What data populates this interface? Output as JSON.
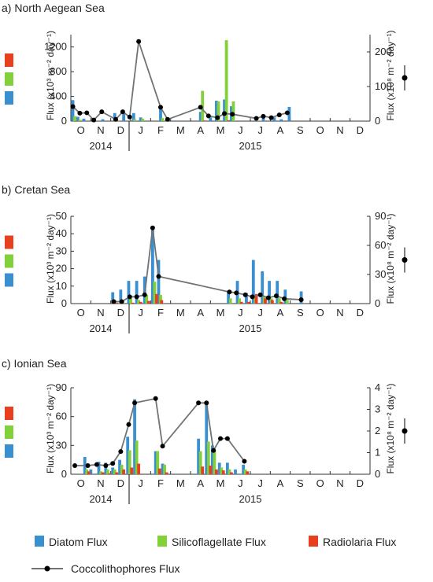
{
  "legend": {
    "diatom": "Diatom Flux",
    "silico": "Silicoflagellate Flux",
    "radio": "Radiolaria Flux",
    "cocco": "Coccolithophores Flux"
  },
  "colors": {
    "diatom": "#3a8fd0",
    "silico": "#82d03a",
    "radio": "#e8401f",
    "cocco": "#6f7478"
  },
  "months": [
    "O",
    "N",
    "D",
    "J",
    "F",
    "M",
    "A",
    "M",
    "J",
    "J",
    "A",
    "S",
    "O",
    "N",
    "D"
  ],
  "years": [
    "2014",
    "2015"
  ],
  "chart_data": [
    {
      "type": "bar",
      "title": "a) North Aegean Sea",
      "ylabel_left": "Flux (x10³ m⁻² day⁻¹)",
      "ylabel_right": "Flux (x10⁸ m⁻² day⁻¹)",
      "ylim_left": [
        0,
        1400
      ],
      "yticks_left": [
        0,
        400,
        800,
        1200
      ],
      "ylim_right": [
        0,
        250
      ],
      "yticks_right": [
        0,
        100,
        200
      ],
      "diatom": [
        [
          0.1,
          340
        ],
        [
          0.35,
          70
        ],
        [
          0.65,
          40
        ],
        [
          1.1,
          30
        ],
        [
          1.6,
          30
        ],
        [
          2.2,
          130
        ],
        [
          2.65,
          120
        ],
        [
          3.15,
          130
        ],
        [
          3.5,
          60
        ],
        [
          4.5,
          200
        ],
        [
          6.5,
          150
        ],
        [
          7.0,
          60
        ],
        [
          7.3,
          330
        ],
        [
          7.7,
          350
        ],
        [
          8.05,
          240
        ],
        [
          9.3,
          50
        ],
        [
          9.65,
          60
        ],
        [
          10.2,
          60
        ],
        [
          10.55,
          30
        ],
        [
          10.95,
          230
        ]
      ],
      "silico": [
        [
          0.2,
          80
        ],
        [
          0.45,
          20
        ],
        [
          1.2,
          10
        ],
        [
          2.3,
          20
        ],
        [
          3.2,
          30
        ],
        [
          3.6,
          40
        ],
        [
          4.6,
          50
        ],
        [
          6.6,
          490
        ],
        [
          7.4,
          320
        ],
        [
          7.8,
          1310
        ],
        [
          8.15,
          320
        ],
        [
          9.4,
          10
        ]
      ],
      "radio": [
        [
          0.3,
          5
        ],
        [
          2.4,
          5
        ],
        [
          6.7,
          10
        ],
        [
          7.9,
          15
        ],
        [
          9.5,
          5
        ]
      ],
      "cocco": [
        [
          0.1,
          42
        ],
        [
          0.45,
          23
        ],
        [
          0.8,
          24
        ],
        [
          1.15,
          3
        ],
        [
          1.55,
          27
        ],
        [
          2.25,
          5
        ],
        [
          2.6,
          27
        ],
        [
          2.95,
          12
        ],
        [
          3.4,
          230
        ],
        [
          4.5,
          40
        ],
        [
          4.85,
          5
        ],
        [
          6.5,
          40
        ],
        [
          6.9,
          15
        ],
        [
          7.35,
          10
        ],
        [
          7.7,
          22
        ],
        [
          8.1,
          20
        ],
        [
          9.3,
          8
        ],
        [
          9.65,
          14
        ],
        [
          10.05,
          10
        ],
        [
          10.45,
          18
        ],
        [
          10.85,
          24
        ]
      ]
    },
    {
      "type": "bar",
      "title": "b) Cretan Sea",
      "ylabel_left": "Flux (x10³ m⁻² day⁻¹)",
      "ylabel_right": "Flux (x10⁸ m⁻² day⁻¹)",
      "ylim_left": [
        0,
        50
      ],
      "yticks_left": [
        0,
        10,
        20,
        30,
        40,
        50
      ],
      "ylim_right": [
        0,
        90
      ],
      "yticks_right": [
        0,
        30,
        60,
        90
      ],
      "diatom": [
        [
          2.1,
          6.5
        ],
        [
          2.5,
          8
        ],
        [
          2.9,
          13
        ],
        [
          3.3,
          13
        ],
        [
          3.7,
          15.5
        ],
        [
          4.1,
          44
        ],
        [
          4.4,
          25
        ],
        [
          7.9,
          7
        ],
        [
          8.35,
          13
        ],
        [
          8.8,
          6
        ],
        [
          9.15,
          25
        ],
        [
          9.6,
          18.5
        ],
        [
          9.95,
          13
        ],
        [
          10.35,
          13
        ],
        [
          10.75,
          8
        ],
        [
          11.55,
          7
        ]
      ],
      "silico": [
        [
          2.2,
          2
        ],
        [
          2.6,
          1.5
        ],
        [
          3.0,
          3
        ],
        [
          3.4,
          2
        ],
        [
          3.8,
          5
        ],
        [
          4.2,
          12.5
        ],
        [
          4.5,
          5
        ],
        [
          8.0,
          3
        ],
        [
          8.45,
          3
        ],
        [
          9.25,
          4
        ],
        [
          9.7,
          4
        ],
        [
          10.05,
          3
        ],
        [
          10.45,
          3
        ],
        [
          10.85,
          2
        ]
      ],
      "radio": [
        [
          2.3,
          0.5
        ],
        [
          3.1,
          0.5
        ],
        [
          3.5,
          1
        ],
        [
          3.9,
          1.5
        ],
        [
          4.3,
          5.5
        ],
        [
          4.55,
          2
        ],
        [
          8.55,
          1
        ],
        [
          8.9,
          1
        ],
        [
          9.3,
          5.5
        ],
        [
          9.75,
          3
        ],
        [
          10.1,
          2
        ],
        [
          10.55,
          1
        ]
      ],
      "cocco": [
        [
          2.15,
          2
        ],
        [
          2.55,
          2
        ],
        [
          2.95,
          7
        ],
        [
          3.3,
          7
        ],
        [
          3.7,
          9
        ],
        [
          4.1,
          78
        ],
        [
          4.4,
          28
        ],
        [
          7.95,
          12
        ],
        [
          8.3,
          11
        ],
        [
          8.75,
          9
        ],
        [
          9.1,
          7
        ],
        [
          9.5,
          9
        ],
        [
          9.9,
          6
        ],
        [
          10.3,
          8
        ],
        [
          10.7,
          5
        ],
        [
          11.55,
          4
        ]
      ]
    },
    {
      "type": "bar",
      "title": "c) Ionian Sea",
      "ylabel_left": "Flux (x10³ m⁻² day⁻¹)",
      "ylabel_right": "Flux (x10⁸ m⁻² day⁻¹)",
      "ylim_left": [
        0,
        90
      ],
      "yticks_left": [
        0,
        30,
        60,
        90
      ],
      "ylim_right": [
        0,
        4
      ],
      "yticks_right": [
        0,
        1,
        2,
        3,
        4
      ],
      "diatom": [
        [
          0.7,
          18
        ],
        [
          1.0,
          5
        ],
        [
          1.4,
          13
        ],
        [
          1.75,
          12
        ],
        [
          2.1,
          7
        ],
        [
          2.45,
          15
        ],
        [
          2.85,
          39
        ],
        [
          3.2,
          78
        ],
        [
          4.25,
          24
        ],
        [
          4.6,
          11
        ],
        [
          6.4,
          37
        ],
        [
          6.8,
          75
        ],
        [
          7.1,
          30
        ],
        [
          7.45,
          12
        ],
        [
          7.85,
          12
        ],
        [
          8.25,
          5
        ],
        [
          8.65,
          10
        ]
      ],
      "silico": [
        [
          0.8,
          5
        ],
        [
          1.5,
          3
        ],
        [
          1.85,
          5
        ],
        [
          2.2,
          5
        ],
        [
          2.55,
          10
        ],
        [
          2.95,
          25
        ],
        [
          3.3,
          35
        ],
        [
          4.35,
          24
        ],
        [
          4.7,
          10
        ],
        [
          6.5,
          24
        ],
        [
          6.9,
          34
        ],
        [
          7.2,
          25
        ],
        [
          7.55,
          7
        ],
        [
          7.95,
          5
        ],
        [
          8.75,
          5
        ]
      ],
      "radio": [
        [
          0.9,
          3
        ],
        [
          1.6,
          2
        ],
        [
          1.95,
          1
        ],
        [
          2.3,
          2
        ],
        [
          2.65,
          5
        ],
        [
          3.05,
          7
        ],
        [
          3.4,
          11
        ],
        [
          4.45,
          6
        ],
        [
          4.8,
          2
        ],
        [
          6.6,
          8
        ],
        [
          7.0,
          9
        ],
        [
          7.3,
          5
        ],
        [
          7.65,
          4
        ],
        [
          8.05,
          2
        ],
        [
          8.85,
          3
        ]
      ],
      "cocco": [
        [
          0.2,
          0.4
        ],
        [
          0.85,
          0.4
        ],
        [
          1.3,
          0.45
        ],
        [
          1.75,
          0.4
        ],
        [
          2.1,
          0.5
        ],
        [
          2.5,
          1.05
        ],
        [
          2.9,
          2.3
        ],
        [
          3.2,
          3.3
        ],
        [
          4.25,
          3.5
        ],
        [
          4.6,
          1.3
        ],
        [
          6.4,
          3.3
        ],
        [
          6.8,
          3.3
        ],
        [
          7.15,
          1.1
        ],
        [
          7.5,
          1.65
        ],
        [
          7.85,
          1.65
        ],
        [
          8.7,
          0.6
        ]
      ]
    }
  ]
}
